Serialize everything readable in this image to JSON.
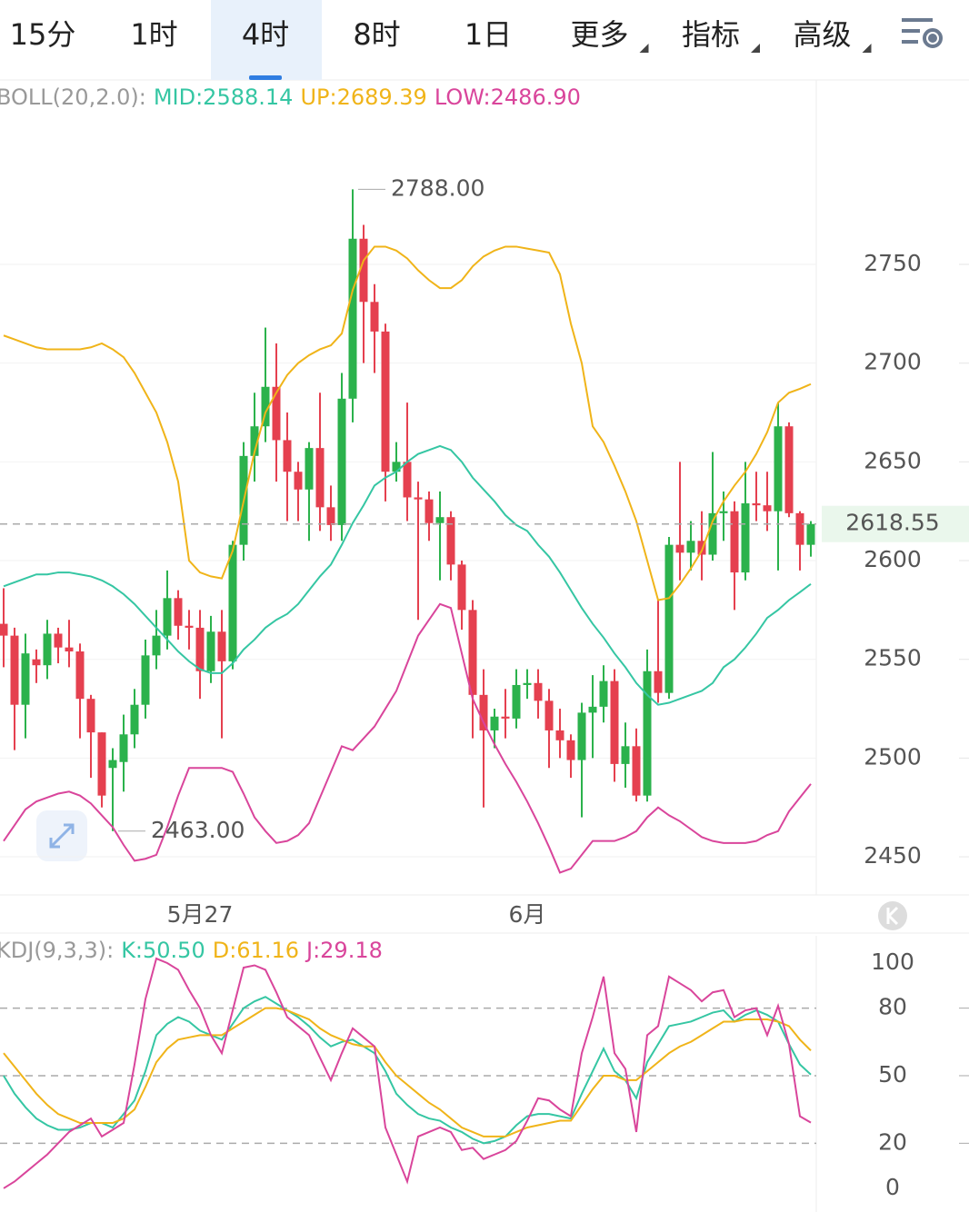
{
  "tabs": [
    {
      "label": "15分"
    },
    {
      "label": "1时"
    },
    {
      "label": "4时"
    },
    {
      "label": "8时"
    },
    {
      "label": "1日"
    },
    {
      "label": "更多",
      "dropdown": true
    },
    {
      "label": "指标",
      "dropdown": true
    },
    {
      "label": "高级",
      "dropdown": true
    }
  ],
  "active_tab": "4时",
  "chart_data": [
    {
      "type": "candlestick",
      "indicator": "BOLL(20,2.0):",
      "categories": [
        null,
        null,
        null,
        null,
        null,
        null,
        null,
        null,
        null,
        null,
        null,
        null,
        null,
        null,
        null,
        null,
        null,
        null,
        "5月27",
        null,
        null,
        null,
        null,
        null,
        null,
        null,
        null,
        null,
        null,
        null,
        null,
        null,
        null,
        null,
        null,
        null,
        null,
        null,
        null,
        null,
        null,
        null,
        null,
        null,
        null,
        null,
        null,
        null,
        "6月",
        null,
        null,
        null,
        null,
        null,
        null,
        null,
        null,
        null,
        null,
        null,
        null,
        null,
        null,
        null,
        null,
        null,
        null,
        null,
        null,
        null,
        null,
        null,
        null,
        null,
        null
      ],
      "open": [
        2568,
        2562,
        2527,
        2550,
        2547,
        2563,
        2556,
        2554,
        2530,
        2513,
        2495,
        2498,
        2512,
        2527,
        2552,
        2562,
        2581,
        2567,
        2566,
        2544,
        2564,
        2549,
        2608,
        2653,
        2668,
        2688,
        2661,
        2645,
        2636,
        2657,
        2627,
        2618,
        2682,
        2763,
        2731,
        2716,
        2645,
        2650,
        2632,
        2631,
        2619,
        2622,
        2598,
        2575,
        2532,
        2514,
        2521,
        2520,
        2537,
        2538,
        2529,
        2514,
        2509,
        2499,
        2523,
        2526,
        2539,
        2497,
        2506,
        2481,
        2544,
        2533,
        2608,
        2604,
        2610,
        2603,
        2624,
        2625,
        2594,
        2629,
        2628,
        2625,
        2668,
        2624,
        2608
      ],
      "high": [
        2586,
        2566,
        2563,
        2555,
        2570,
        2566,
        2570,
        2558,
        2532,
        2513,
        2505,
        2522,
        2535,
        2560,
        2575,
        2595,
        2585,
        2575,
        2575,
        2572,
        2575,
        2610,
        2660,
        2685,
        2718,
        2710,
        2675,
        2650,
        2660,
        2685,
        2638,
        2695,
        2788,
        2770,
        2740,
        2720,
        2660,
        2680,
        2640,
        2635,
        2635,
        2625,
        2600,
        2580,
        2545,
        2525,
        2535,
        2545,
        2545,
        2545,
        2535,
        2525,
        2512,
        2528,
        2542,
        2547,
        2545,
        2518,
        2515,
        2555,
        2580,
        2612,
        2650,
        2620,
        2625,
        2655,
        2635,
        2630,
        2650,
        2645,
        2645,
        2680,
        2670,
        2625,
        2620
      ],
      "low": [
        2546,
        2504,
        2510,
        2538,
        2540,
        2548,
        2546,
        2510,
        2490,
        2475,
        2463,
        2483,
        2505,
        2520,
        2545,
        2555,
        2560,
        2555,
        2530,
        2538,
        2510,
        2545,
        2600,
        2640,
        2660,
        2640,
        2620,
        2620,
        2610,
        2615,
        2610,
        2610,
        2670,
        2700,
        2695,
        2630,
        2640,
        2620,
        2570,
        2610,
        2590,
        2590,
        2565,
        2510,
        2475,
        2505,
        2510,
        2515,
        2530,
        2520,
        2495,
        2500,
        2490,
        2470,
        2500,
        2518,
        2488,
        2485,
        2478,
        2478,
        2528,
        2530,
        2590,
        2595,
        2590,
        2600,
        2610,
        2575,
        2590,
        2620,
        2615,
        2595,
        2622,
        2595,
        2602
      ],
      "close": [
        2562,
        2527,
        2553,
        2547,
        2563,
        2556,
        2554,
        2530,
        2513,
        2481,
        2499,
        2512,
        2527,
        2552,
        2562,
        2581,
        2567,
        2566,
        2544,
        2564,
        2549,
        2608,
        2653,
        2668,
        2688,
        2661,
        2645,
        2636,
        2657,
        2627,
        2618,
        2682,
        2763,
        2731,
        2716,
        2645,
        2650,
        2632,
        2631,
        2619,
        2622,
        2598,
        2575,
        2532,
        2514,
        2521,
        2520,
        2537,
        2538,
        2529,
        2514,
        2509,
        2499,
        2523,
        2526,
        2539,
        2497,
        2506,
        2481,
        2544,
        2533,
        2608,
        2604,
        2610,
        2603,
        2624,
        2625,
        2594,
        2629,
        2628,
        2625,
        2668,
        2624,
        2608,
        2618.55
      ],
      "up_color": "#2bb24c",
      "down_color": "#e5404f",
      "series": [
        {
          "name": "MID",
          "legend_label": "MID:2588.14",
          "color": "#35c6a3",
          "values": [
            2587,
            2589,
            2591,
            2593,
            2593,
            2594,
            2594,
            2593,
            2592,
            2590,
            2587,
            2583,
            2578,
            2572,
            2566,
            2560,
            2554,
            2549,
            2545,
            2543,
            2543,
            2548,
            2555,
            2560,
            2566,
            2570,
            2573,
            2578,
            2585,
            2592,
            2598,
            2608,
            2619,
            2628,
            2638,
            2642,
            2645,
            2650,
            2654,
            2656,
            2658,
            2656,
            2650,
            2642,
            2636,
            2630,
            2623,
            2618,
            2615,
            2608,
            2602,
            2594,
            2585,
            2576,
            2568,
            2561,
            2553,
            2546,
            2538,
            2532,
            2527,
            2528,
            2530,
            2532,
            2534,
            2538,
            2546,
            2550,
            2556,
            2563,
            2571,
            2575,
            2580,
            2584,
            2588.14
          ]
        },
        {
          "name": "UP",
          "legend_label": "UP:2689.39",
          "color": "#f0b419",
          "values": [
            2714,
            2712,
            2710,
            2708,
            2707,
            2707,
            2707,
            2707,
            2708,
            2710,
            2707,
            2703,
            2695,
            2685,
            2675,
            2660,
            2640,
            2600,
            2594,
            2592,
            2591,
            2605,
            2630,
            2655,
            2675,
            2685,
            2694,
            2700,
            2704,
            2707,
            2709,
            2715,
            2737,
            2752,
            2759,
            2759,
            2757,
            2753,
            2747,
            2742,
            2738,
            2738,
            2742,
            2749,
            2754,
            2757,
            2759,
            2759,
            2758,
            2757,
            2756,
            2745,
            2720,
            2700,
            2668,
            2660,
            2648,
            2635,
            2620,
            2600,
            2580,
            2581,
            2588,
            2596,
            2605,
            2620,
            2630,
            2638,
            2645,
            2654,
            2665,
            2680,
            2685,
            2687,
            2689.39
          ]
        },
        {
          "name": "LOW",
          "legend_label": "LOW:2486.90",
          "color": "#d9459b",
          "values": [
            2458,
            2466,
            2474,
            2478,
            2480,
            2482,
            2483,
            2481,
            2477,
            2471,
            2465,
            2456,
            2448,
            2449,
            2451,
            2465,
            2481,
            2495,
            2495,
            2495,
            2495,
            2493,
            2482,
            2470,
            2463,
            2457,
            2458,
            2461,
            2467,
            2480,
            2493,
            2506,
            2504,
            2510,
            2516,
            2525,
            2534,
            2548,
            2562,
            2570,
            2578,
            2576,
            2553,
            2530,
            2518,
            2507,
            2497,
            2488,
            2478,
            2467,
            2455,
            2442,
            2444,
            2451,
            2458,
            2458,
            2458,
            2460,
            2463,
            2470,
            2475,
            2471,
            2468,
            2464,
            2460,
            2458,
            2457,
            2457,
            2457,
            2458,
            2461,
            2463,
            2473,
            2480,
            2486.9
          ]
        }
      ],
      "ylim": [
        2430.7,
        2843.4
      ],
      "yticks": [
        2450,
        2500,
        2550,
        2600,
        2650,
        2700,
        2750
      ],
      "grid": true,
      "max_label": "2788.00",
      "min_label": "2463.00",
      "last_label": "2618.55"
    },
    {
      "type": "line",
      "indicator": "KDJ(9,3,3):",
      "series": [
        {
          "name": "K",
          "legend_label": "K:50.50",
          "color": "#35c6a3",
          "values": [
            50,
            42,
            36,
            31,
            28,
            26,
            26,
            27,
            29,
            29,
            27,
            33,
            39,
            52,
            68,
            73,
            76,
            74,
            70,
            68,
            66,
            73,
            80,
            83,
            85,
            82,
            79,
            76,
            72,
            67,
            63,
            65,
            66,
            63,
            60,
            52,
            42,
            37,
            33,
            31,
            30,
            27,
            25,
            22,
            20,
            21,
            23,
            28,
            32,
            33,
            33,
            32,
            31,
            42,
            52,
            62,
            52,
            48,
            40,
            56,
            64,
            72,
            73,
            74,
            76,
            78,
            79,
            74,
            77,
            79,
            77,
            74,
            64,
            55,
            50.5
          ]
        },
        {
          "name": "D",
          "legend_label": "D:61.16",
          "color": "#f0b419",
          "values": [
            60,
            54,
            48,
            42,
            37,
            33,
            31,
            29,
            29,
            29,
            29,
            31,
            35,
            45,
            56,
            62,
            66,
            67,
            68,
            68,
            68,
            71,
            74,
            77,
            80,
            80,
            79,
            77,
            75,
            71,
            68,
            66,
            64,
            63,
            63,
            56,
            50,
            46,
            42,
            38,
            35,
            31,
            27,
            25,
            23,
            23,
            23,
            25,
            27,
            28,
            29,
            30,
            30,
            37,
            44,
            50,
            50,
            48,
            48,
            52,
            56,
            60,
            63,
            65,
            68,
            71,
            74,
            74,
            75,
            75,
            75,
            74,
            72,
            66,
            61.16
          ]
        },
        {
          "name": "J",
          "legend_label": "J:29.18",
          "color": "#d9459b",
          "values": [
            0,
            3,
            7,
            11,
            15,
            20,
            25,
            28,
            31,
            23,
            26,
            29,
            55,
            84,
            102,
            100,
            97,
            88,
            80,
            68,
            60,
            79,
            98,
            99,
            97,
            87,
            76,
            72,
            68,
            58,
            48,
            60,
            71,
            67,
            63,
            27,
            15,
            3,
            23,
            25,
            27,
            25,
            17,
            18,
            13,
            15,
            17,
            21,
            30,
            40,
            39,
            35,
            32,
            60,
            76,
            94,
            60,
            53,
            25,
            68,
            72,
            94,
            91,
            88,
            83,
            87,
            88,
            76,
            79,
            80,
            68,
            81,
            64,
            32,
            29.18
          ]
        }
      ],
      "ylim": [
        -8.9,
        112.1
      ],
      "yticks": [
        0,
        20,
        50,
        80,
        100
      ],
      "grid_lines": [
        20,
        50,
        80
      ]
    }
  ]
}
